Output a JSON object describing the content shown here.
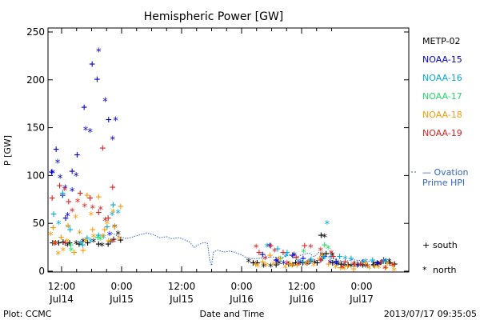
{
  "chart_data": {
    "type": "scatter",
    "title": "Hemispheric Power [GW]",
    "ylabel": "P [GW]",
    "xlabel": "Date and Time",
    "ylim": [
      0,
      255
    ],
    "xlim_hours": [
      -3,
      56
    ],
    "y_ticks": [
      0,
      50,
      100,
      150,
      200,
      250
    ],
    "x_ticks": [
      {
        "h": 0,
        "time": "12:00",
        "date": "Jul14"
      },
      {
        "h": 12,
        "time": "0:00",
        "date": "Jul15"
      },
      {
        "h": 24,
        "time": "12:00",
        "date": "Jul15"
      },
      {
        "h": 36,
        "time": "0:00",
        "date": "Jul16"
      },
      {
        "h": 48,
        "time": "12:00",
        "date": "Jul16"
      },
      {
        "h": 60,
        "time": "0:00",
        "date": "Jul17"
      }
    ],
    "series": [
      {
        "name": "METP-02",
        "color": "#000000",
        "south": [
          [
            -1.8,
            30
          ],
          [
            -0.6,
            30
          ],
          [
            0.3,
            31
          ],
          [
            1.6,
            30
          ],
          [
            3.5,
            29
          ],
          [
            5.2,
            30
          ],
          [
            7.4,
            29
          ],
          [
            9.3,
            29
          ],
          [
            10.4,
            34
          ],
          [
            11.8,
            33
          ],
          [
            38.3,
            9
          ],
          [
            39.1,
            9
          ],
          [
            42.9,
            7
          ],
          [
            45.4,
            8
          ],
          [
            46.8,
            9
          ],
          [
            48.2,
            9
          ],
          [
            49.7,
            11
          ],
          [
            51.1,
            9
          ],
          [
            51.9,
            38
          ],
          [
            52.9,
            19
          ],
          [
            54.2,
            9
          ],
          [
            55.9,
            8
          ],
          [
            57.3,
            7
          ],
          [
            58.6,
            8
          ],
          [
            60.2,
            7
          ],
          [
            62.4,
            7
          ],
          [
            63.3,
            8
          ],
          [
            64.8,
            11
          ],
          [
            65.6,
            9
          ],
          [
            66.6,
            8
          ]
        ],
        "north": [
          [
            -1.2,
            31
          ],
          [
            1.2,
            29
          ],
          [
            2.9,
            31
          ],
          [
            4.3,
            33
          ],
          [
            6.4,
            33
          ],
          [
            8.1,
            29
          ],
          [
            9.8,
            32
          ],
          [
            10.6,
            48
          ],
          [
            11.3,
            41
          ],
          [
            37.4,
            12
          ],
          [
            38.8,
            9
          ],
          [
            40.4,
            7
          ],
          [
            41.8,
            7
          ],
          [
            43.5,
            10
          ],
          [
            46.2,
            8
          ],
          [
            47.4,
            9
          ],
          [
            49.1,
            9
          ],
          [
            50.6,
            11
          ],
          [
            52.1,
            19
          ],
          [
            52.6,
            38
          ],
          [
            54.1,
            19
          ],
          [
            55.3,
            9
          ],
          [
            56.5,
            7
          ],
          [
            57.9,
            7
          ],
          [
            59.4,
            8
          ],
          [
            60.8,
            7
          ],
          [
            62.4,
            9
          ],
          [
            63.8,
            10
          ],
          [
            65.5,
            12
          ]
        ]
      },
      {
        "name": "NOAA-15",
        "color": "#0000cc",
        "south": [
          [
            -2.0,
            104
          ],
          [
            -1.1,
            128
          ],
          [
            0.2,
            80
          ],
          [
            0.8,
            56
          ],
          [
            2.1,
            105
          ],
          [
            3.1,
            122
          ],
          [
            4.5,
            172
          ],
          [
            6.1,
            217
          ],
          [
            7.1,
            201
          ],
          [
            9.4,
            159
          ],
          [
            40.2,
            18
          ],
          [
            42.9,
            12
          ],
          [
            46.2,
            17
          ],
          [
            48.3,
            14
          ],
          [
            49.3,
            10
          ],
          [
            52.4,
            16
          ],
          [
            54.9,
            11
          ],
          [
            59.1,
            8
          ],
          [
            60.2,
            10
          ],
          [
            63.1,
            9
          ],
          [
            64.4,
            12
          ]
        ],
        "north": [
          [
            -1.8,
            105
          ],
          [
            -0.8,
            116
          ],
          [
            -0.3,
            100
          ],
          [
            0.7,
            89
          ],
          [
            1.2,
            60
          ],
          [
            2.1,
            86
          ],
          [
            2.9,
            102
          ],
          [
            4.8,
            150
          ],
          [
            5.7,
            148
          ],
          [
            7.4,
            232
          ],
          [
            8.7,
            180
          ],
          [
            9.6,
            40
          ],
          [
            10.2,
            140
          ],
          [
            10.8,
            160
          ],
          [
            41.6,
            28
          ],
          [
            43.1,
            12
          ],
          [
            44.4,
            10
          ],
          [
            46.5,
            19
          ],
          [
            47.7,
            11
          ],
          [
            49.1,
            10
          ],
          [
            51.9,
            13
          ],
          [
            53.7,
            11
          ],
          [
            54.9,
            9
          ],
          [
            59.1,
            7
          ],
          [
            63.3,
            9
          ]
        ]
      },
      {
        "name": "NOAA-16",
        "color": "#00aadd",
        "south": [
          [
            -1.6,
            60
          ],
          [
            0.2,
            82
          ],
          [
            1.7,
            44
          ],
          [
            4.2,
            28
          ],
          [
            5.1,
            35
          ],
          [
            7.4,
            38
          ],
          [
            9.1,
            47
          ],
          [
            10.3,
            70
          ],
          [
            43.2,
            24
          ],
          [
            45.1,
            20
          ],
          [
            48.3,
            10
          ],
          [
            49.9,
            13
          ],
          [
            52.2,
            14
          ],
          [
            53.9,
            16
          ],
          [
            55.6,
            16
          ],
          [
            57.9,
            14
          ],
          [
            60.3,
            10
          ],
          [
            62.2,
            12
          ],
          [
            64.4,
            11
          ]
        ],
        "north": [
          [
            -0.6,
            52
          ],
          [
            1.3,
            48
          ],
          [
            3.8,
            31
          ],
          [
            5.8,
            33
          ],
          [
            8.4,
            37
          ],
          [
            10.1,
            61
          ],
          [
            11.3,
            63
          ],
          [
            41.1,
            28
          ],
          [
            44.9,
            18
          ],
          [
            47.3,
            12
          ],
          [
            49.6,
            11
          ],
          [
            52.5,
            16
          ],
          [
            53.1,
            52
          ],
          [
            56.7,
            15
          ],
          [
            60.8,
            12
          ],
          [
            64.9,
            12
          ]
        ]
      },
      {
        "name": "NOAA-17",
        "color": "#22dd66",
        "south": [
          [
            1.8,
            28
          ],
          [
            7.2,
            36
          ],
          [
            43.8,
            14
          ],
          [
            52.6,
            28
          ]
        ],
        "north": [
          [
            1.9,
            24
          ],
          [
            7.7,
            35
          ],
          [
            48.4,
            22
          ],
          [
            53.3,
            26
          ]
        ]
      },
      {
        "name": "NOAA-18",
        "color": "#ff9900",
        "south": [
          [
            -1.7,
            46
          ],
          [
            -1.3,
            30
          ],
          [
            -0.1,
            36
          ],
          [
            1.3,
            48
          ],
          [
            2.5,
            20
          ],
          [
            4.3,
            22
          ],
          [
            5.1,
            80
          ],
          [
            6.2,
            44
          ],
          [
            7.4,
            78
          ],
          [
            8.6,
            44
          ],
          [
            9.4,
            32
          ],
          [
            10.6,
            47
          ],
          [
            11.8,
            68
          ],
          [
            38.8,
            8
          ],
          [
            40.2,
            10
          ],
          [
            41.7,
            17
          ],
          [
            43.5,
            14
          ],
          [
            45.7,
            8
          ],
          [
            47.1,
            7
          ],
          [
            49.3,
            10
          ],
          [
            51.6,
            14
          ],
          [
            53.4,
            8
          ],
          [
            55.8,
            4
          ],
          [
            57.2,
            6
          ],
          [
            58.4,
            3
          ],
          [
            60.7,
            9
          ],
          [
            62.6,
            6
          ],
          [
            64.8,
            4
          ],
          [
            66.3,
            7
          ]
        ],
        "north": [
          [
            -2.2,
            40
          ],
          [
            -0.7,
            20
          ],
          [
            0.3,
            24
          ],
          [
            1.1,
            33
          ],
          [
            2.8,
            58
          ],
          [
            3.6,
            42
          ],
          [
            4.8,
            33
          ],
          [
            5.9,
            61
          ],
          [
            6.4,
            38
          ],
          [
            8.2,
            38
          ],
          [
            9.1,
            52
          ],
          [
            10.3,
            64
          ],
          [
            11.5,
            36
          ],
          [
            39.2,
            7
          ],
          [
            40.9,
            8
          ],
          [
            42.4,
            9
          ],
          [
            44.7,
            6
          ],
          [
            46.1,
            7
          ],
          [
            48.8,
            9
          ],
          [
            50.4,
            8
          ],
          [
            52.1,
            18
          ],
          [
            54.8,
            6
          ],
          [
            56.5,
            4
          ],
          [
            58.7,
            8
          ],
          [
            61.5,
            5
          ],
          [
            63.4,
            6
          ],
          [
            65.2,
            9
          ],
          [
            66.5,
            3
          ]
        ]
      },
      {
        "name": "NOAA-19",
        "color": "#dd2222",
        "south": [
          [
            -1.9,
            77
          ],
          [
            -0.4,
            90
          ],
          [
            0.7,
            30
          ],
          [
            1.4,
            73
          ],
          [
            3.7,
            82
          ],
          [
            5.7,
            77
          ],
          [
            7.4,
            62
          ],
          [
            8.2,
            129
          ],
          [
            9.3,
            56
          ],
          [
            10.2,
            88
          ],
          [
            39.5,
            20
          ],
          [
            41.8,
            27
          ],
          [
            44.3,
            20
          ],
          [
            46.9,
            15
          ],
          [
            48.6,
            27
          ],
          [
            51.8,
            12
          ],
          [
            54.3,
            16
          ],
          [
            56.7,
            10
          ],
          [
            59.8,
            8
          ],
          [
            63.9,
            10
          ]
        ],
        "north": [
          [
            -1.4,
            30
          ],
          [
            0.6,
            87
          ],
          [
            2.1,
            65
          ],
          [
            3.2,
            75
          ],
          [
            4.6,
            70
          ],
          [
            6.2,
            68
          ],
          [
            7.8,
            67
          ],
          [
            8.7,
            55
          ],
          [
            10.4,
            33
          ],
          [
            38.9,
            27
          ],
          [
            40.7,
            15
          ],
          [
            42.6,
            23
          ],
          [
            45.1,
            10
          ],
          [
            47.4,
            9
          ],
          [
            49.8,
            27
          ],
          [
            51.8,
            24
          ],
          [
            53.9,
            21
          ],
          [
            56.1,
            6
          ],
          [
            58.4,
            9
          ],
          [
            61.2,
            7
          ],
          [
            64.7,
            5
          ],
          [
            66.2,
            8
          ]
        ]
      }
    ],
    "model": {
      "name": "Ovation Prime HPI",
      "color": "#3366cc",
      "points": [
        [
          10.0,
          40
        ],
        [
          11.5,
          36
        ],
        [
          13,
          34
        ],
        [
          15,
          37
        ],
        [
          17,
          40
        ],
        [
          18.5,
          38
        ],
        [
          19.5,
          35
        ],
        [
          21,
          36
        ],
        [
          22,
          34
        ],
        [
          23.5,
          35
        ],
        [
          24.5,
          33
        ],
        [
          25.5,
          31
        ],
        [
          26.5,
          25
        ],
        [
          27.5,
          28
        ],
        [
          28.5,
          30
        ],
        [
          29.2,
          29
        ],
        [
          29.6,
          12
        ],
        [
          30.0,
          6
        ],
        [
          30.4,
          20
        ],
        [
          31.2,
          22
        ],
        [
          32.5,
          20
        ],
        [
          33.5,
          21
        ],
        [
          34.5,
          20
        ],
        [
          35.5,
          18
        ],
        [
          36.0,
          17
        ],
        [
          37,
          14
        ],
        [
          38.5,
          13
        ],
        [
          40.5,
          14
        ],
        [
          42,
          15
        ],
        [
          44,
          14
        ],
        [
          45.5,
          17
        ],
        [
          46.5,
          14
        ],
        [
          48,
          17
        ],
        [
          49.5,
          19
        ],
        [
          50.5,
          15
        ],
        [
          51.5,
          20
        ],
        [
          52.5,
          17
        ],
        [
          53.5,
          14
        ],
        [
          55,
          12
        ],
        [
          56.5,
          10
        ],
        [
          58,
          12
        ],
        [
          60,
          11
        ],
        [
          62,
          10
        ],
        [
          64,
          9
        ],
        [
          66,
          8
        ]
      ]
    },
    "legend": [
      "METP-02",
      "NOAA-15",
      "NOAA-16",
      "NOAA-17",
      "NOAA-18",
      "NOAA-19"
    ],
    "legend_model_line1": "— Ovation",
    "legend_model_line2": "Prime HPI",
    "marker_key": [
      {
        "symbol": "+",
        "label": "south"
      },
      {
        "symbol": "*",
        "label": "north"
      }
    ]
  },
  "footer": {
    "left": "Plot: CCMC",
    "right": "2013/07/17 09:35:05"
  }
}
